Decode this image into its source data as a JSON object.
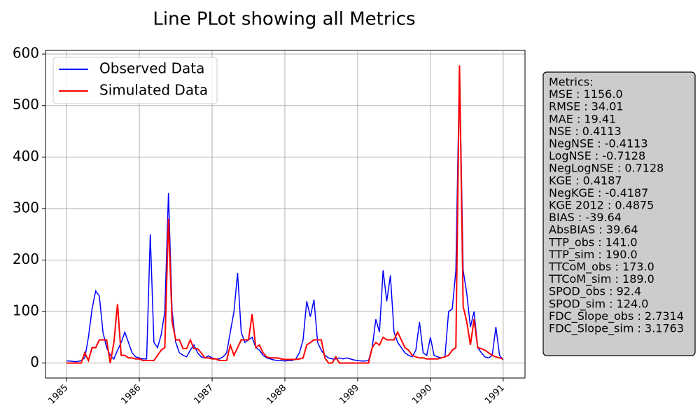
{
  "chart_data": {
    "type": "line",
    "title": "Line PLot showing all Metrics",
    "x": [
      1985,
      1985.05,
      1985.1,
      1985.15,
      1985.2,
      1985.25,
      1985.3,
      1985.35,
      1985.4,
      1985.45,
      1985.5,
      1985.55,
      1985.6,
      1985.65,
      1985.7,
      1985.75,
      1985.8,
      1985.85,
      1985.9,
      1985.95,
      1986,
      1986.05,
      1986.1,
      1986.15,
      1986.2,
      1986.25,
      1986.3,
      1986.35,
      1986.4,
      1986.45,
      1986.5,
      1986.55,
      1986.6,
      1986.65,
      1986.7,
      1986.75,
      1986.8,
      1986.85,
      1986.9,
      1986.95,
      1987,
      1987.05,
      1987.1,
      1987.15,
      1987.2,
      1987.25,
      1987.3,
      1987.35,
      1987.4,
      1987.45,
      1987.5,
      1987.55,
      1987.6,
      1987.65,
      1987.7,
      1987.75,
      1987.8,
      1987.85,
      1987.9,
      1987.95,
      1988,
      1988.05,
      1988.1,
      1988.15,
      1988.2,
      1988.25,
      1988.3,
      1988.35,
      1988.4,
      1988.45,
      1988.5,
      1988.55,
      1988.6,
      1988.65,
      1988.7,
      1988.75,
      1988.8,
      1988.85,
      1988.9,
      1988.95,
      1989,
      1989.05,
      1989.1,
      1989.15,
      1989.2,
      1989.25,
      1989.3,
      1989.35,
      1989.4,
      1989.45,
      1989.5,
      1989.55,
      1989.6,
      1989.65,
      1989.7,
      1989.75,
      1989.8,
      1989.85,
      1989.9,
      1989.95,
      1990,
      1990.05,
      1990.1,
      1990.15,
      1990.2,
      1990.25,
      1990.3,
      1990.35,
      1990.4,
      1990.45,
      1990.5,
      1990.55,
      1990.6,
      1990.65,
      1990.7,
      1990.75,
      1990.8,
      1990.85,
      1990.9,
      1990.95,
      1991
    ],
    "series": [
      {
        "name": "Observed Data",
        "color": "#0000ff",
        "values": [
          4,
          4,
          3,
          3,
          5,
          10,
          50,
          105,
          140,
          130,
          60,
          30,
          15,
          8,
          25,
          40,
          60,
          40,
          20,
          12,
          10,
          8,
          8,
          250,
          40,
          30,
          55,
          100,
          330,
          100,
          40,
          20,
          15,
          12,
          25,
          35,
          20,
          12,
          10,
          14,
          10,
          8,
          8,
          12,
          20,
          60,
          100,
          175,
          60,
          40,
          45,
          50,
          30,
          25,
          15,
          10,
          8,
          6,
          5,
          5,
          4,
          5,
          5,
          8,
          20,
          45,
          120,
          90,
          123,
          40,
          25,
          15,
          10,
          8,
          8,
          10,
          8,
          10,
          8,
          6,
          5,
          4,
          4,
          5,
          30,
          85,
          60,
          180,
          120,
          170,
          60,
          40,
          30,
          20,
          15,
          12,
          25,
          80,
          20,
          15,
          50,
          15,
          12,
          10,
          12,
          100,
          105,
          180,
          575,
          180,
          135,
          70,
          100,
          30,
          20,
          12,
          10,
          15,
          70,
          15,
          6
        ]
      },
      {
        "name": "Simulated Data",
        "color": "#ff0000",
        "values": [
          0,
          0,
          0,
          0,
          0,
          20,
          5,
          30,
          30,
          45,
          45,
          45,
          0,
          40,
          115,
          15,
          15,
          10,
          10,
          8,
          8,
          5,
          5,
          5,
          5,
          15,
          25,
          30,
          280,
          80,
          45,
          45,
          28,
          28,
          45,
          28,
          28,
          20,
          10,
          10,
          8,
          8,
          5,
          5,
          5,
          35,
          15,
          30,
          45,
          45,
          45,
          95,
          30,
          35,
          20,
          12,
          10,
          10,
          10,
          8,
          7,
          7,
          7,
          7,
          8,
          10,
          35,
          40,
          45,
          45,
          45,
          10,
          0,
          0,
          12,
          0,
          0,
          0,
          0,
          0,
          0,
          0,
          0,
          0,
          30,
          40,
          35,
          50,
          45,
          45,
          45,
          60,
          45,
          30,
          25,
          15,
          12,
          10,
          10,
          8,
          8,
          8,
          8,
          10,
          12,
          15,
          25,
          30,
          578,
          110,
          80,
          35,
          85,
          30,
          28,
          25,
          20,
          15,
          12,
          10,
          8
        ]
      }
    ],
    "xlim": [
      1984.71,
      1991.3
    ],
    "xticks": [
      1985,
      1986,
      1987,
      1988,
      1989,
      1990,
      1991
    ],
    "ylim": [
      -29,
      607
    ],
    "yticks": [
      0,
      100,
      200,
      300,
      400,
      500,
      600
    ],
    "grid": true,
    "legend": "upper left",
    "metrics_title": "Metrics:",
    "metrics": [
      "MSE : 1156.0",
      "RMSE : 34.01",
      "MAE : 19.41",
      "NSE : 0.4113",
      "NegNSE : -0.4113",
      "LogNSE : -0.7128",
      "NegLogNSE : 0.7128",
      "KGE : 0.4187",
      "NegKGE : -0.4187",
      "KGE 2012 : 0.4875",
      "BIAS : -39.64",
      "AbsBIAS : 39.64",
      "TTP_obs : 141.0",
      "TTP_sim : 190.0",
      "TTCoM_obs : 173.0",
      "TTCoM_sim : 189.0",
      "SPOD_obs : 92.4",
      "SPOD_sim : 124.0",
      "FDC_Slope_obs : 2.7314",
      "FDC_Slope_sim : 3.1763"
    ]
  }
}
